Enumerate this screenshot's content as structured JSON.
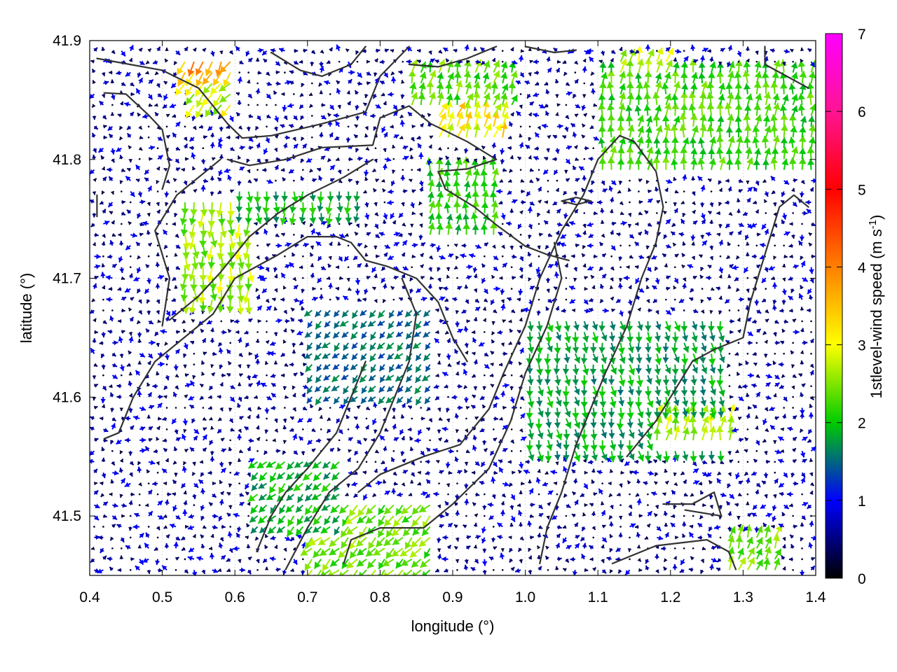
{
  "chart_data": {
    "type": "vector-field",
    "xlabel": "longitude (°)",
    "ylabel": "latitude (°)",
    "xlim": [
      0.4,
      1.4
    ],
    "ylim": [
      41.45,
      41.9
    ],
    "xticks": [
      "0.4",
      "0.5",
      "0.6",
      "0.7",
      "0.8",
      "0.9",
      "1.0",
      "1.1",
      "1.2",
      "1.3",
      "1.4"
    ],
    "xtick_values": [
      0.4,
      0.5,
      0.6,
      0.7,
      0.8,
      0.9,
      1.0,
      1.1,
      1.2,
      1.3,
      1.4
    ],
    "yticks": [
      "41.5",
      "41.6",
      "41.7",
      "41.8",
      "41.9"
    ],
    "ytick_values": [
      41.5,
      41.6,
      41.7,
      41.8,
      41.9
    ],
    "grid": true,
    "colorbar": {
      "label": "1stlevel-wind speed (m s-1)",
      "label_main": "1stlevel-wind speed (m s",
      "label_sup": "-1",
      "label_close": ")",
      "range": [
        0,
        7
      ],
      "ticks": [
        "0",
        "1",
        "2",
        "3",
        "4",
        "5",
        "6",
        "7"
      ],
      "tick_values": [
        0,
        1,
        2,
        3,
        4,
        5,
        6,
        7
      ],
      "colormap": [
        "#000000",
        "#0000ff",
        "#00cc00",
        "#ffff00",
        "#ff8000",
        "#ff0000",
        "#ff00ff"
      ]
    },
    "vector_grid": {
      "dx": 0.0125,
      "dy": 0.0091
    },
    "wind_regions": [
      {
        "lon": [
          0.52,
          0.6
        ],
        "lat": [
          41.86,
          41.89
        ],
        "speed": 3.6,
        "dir_deg": 210
      },
      {
        "lon": [
          0.54,
          0.6
        ],
        "lat": [
          41.84,
          41.87
        ],
        "speed": 2.8,
        "dir_deg": 220
      },
      {
        "lon": [
          0.88,
          0.98
        ],
        "lat": [
          41.81,
          41.87
        ],
        "speed": 3.1,
        "dir_deg": 20
      },
      {
        "lon": [
          0.84,
          0.99
        ],
        "lat": [
          41.84,
          41.88
        ],
        "speed": 2.3,
        "dir_deg": 15
      },
      {
        "lon": [
          1.1,
          1.4
        ],
        "lat": [
          41.79,
          41.88
        ],
        "speed": 2.2,
        "dir_deg": 5
      },
      {
        "lon": [
          1.12,
          1.2
        ],
        "lat": [
          41.87,
          41.89
        ],
        "speed": 2.6,
        "dir_deg": 15
      },
      {
        "lon": [
          0.53,
          0.62
        ],
        "lat": [
          41.68,
          41.77
        ],
        "speed": 2.6,
        "dir_deg": 180
      },
      {
        "lon": [
          0.6,
          0.78
        ],
        "lat": [
          41.75,
          41.78
        ],
        "speed": 1.9,
        "dir_deg": 180
      },
      {
        "lon": [
          0.86,
          0.96
        ],
        "lat": [
          41.73,
          41.8
        ],
        "speed": 2.1,
        "dir_deg": 5
      },
      {
        "lon": [
          1.0,
          1.27
        ],
        "lat": [
          41.55,
          41.67
        ],
        "speed": 1.8,
        "dir_deg": 170
      },
      {
        "lon": [
          1.18,
          1.29
        ],
        "lat": [
          41.56,
          41.59
        ],
        "speed": 2.6,
        "dir_deg": 10
      },
      {
        "lon": [
          0.7,
          0.88
        ],
        "lat": [
          41.45,
          41.51
        ],
        "speed": 2.4,
        "dir_deg": 225
      },
      {
        "lon": [
          0.62,
          0.75
        ],
        "lat": [
          41.49,
          41.55
        ],
        "speed": 1.9,
        "dir_deg": 225
      },
      {
        "lon": [
          1.28,
          1.35
        ],
        "lat": [
          41.45,
          41.49
        ],
        "speed": 2.4,
        "dir_deg": 20
      },
      {
        "lon": [
          0.7,
          0.88
        ],
        "lat": [
          41.6,
          41.68
        ],
        "speed": 1.5,
        "dir_deg": 225
      }
    ],
    "background_speed": 0.8,
    "contours": [
      [
        [
          0.41,
          41.885
        ],
        [
          0.5,
          41.875
        ],
        [
          0.55,
          41.86
        ],
        [
          0.59,
          41.83
        ],
        [
          0.61,
          41.818
        ],
        [
          0.65,
          41.82
        ],
        [
          0.72,
          41.83
        ],
        [
          0.78,
          41.84
        ],
        [
          0.8,
          41.87
        ],
        [
          0.84,
          41.895
        ]
      ],
      [
        [
          0.42,
          41.856
        ],
        [
          0.45,
          41.855
        ],
        [
          0.48,
          41.838
        ],
        [
          0.5,
          41.825
        ],
        [
          0.51,
          41.795
        ],
        [
          0.5,
          41.775
        ]
      ],
      [
        [
          0.41,
          41.77
        ],
        [
          0.41,
          41.752
        ]
      ],
      [
        [
          0.59,
          41.8
        ],
        [
          0.62,
          41.795
        ],
        [
          0.67,
          41.8
        ],
        [
          0.72,
          41.81
        ],
        [
          0.79,
          41.812
        ],
        [
          0.8,
          41.835
        ],
        [
          0.84,
          41.845
        ],
        [
          0.87,
          41.83
        ],
        [
          0.92,
          41.815
        ],
        [
          0.96,
          41.8
        ],
        [
          0.92,
          41.792
        ],
        [
          0.88,
          41.79
        ],
        [
          0.89,
          41.775
        ],
        [
          0.93,
          41.76
        ],
        [
          0.96,
          41.745
        ],
        [
          1.0,
          41.727
        ],
        [
          1.03,
          41.72
        ],
        [
          1.06,
          41.715
        ]
      ],
      [
        [
          0.5,
          41.66
        ],
        [
          0.51,
          41.7
        ],
        [
          0.49,
          41.74
        ],
        [
          0.52,
          41.77
        ],
        [
          0.56,
          41.79
        ],
        [
          0.58,
          41.8
        ]
      ],
      [
        [
          0.51,
          41.665
        ],
        [
          0.55,
          41.685
        ],
        [
          0.58,
          41.705
        ],
        [
          0.62,
          41.735
        ],
        [
          0.66,
          41.755
        ],
        [
          0.7,
          41.77
        ],
        [
          0.75,
          41.785
        ],
        [
          0.79,
          41.8
        ]
      ],
      [
        [
          0.42,
          41.565
        ],
        [
          0.44,
          41.57
        ],
        [
          0.46,
          41.6
        ],
        [
          0.49,
          41.63
        ],
        [
          0.53,
          41.65
        ],
        [
          0.57,
          41.67
        ],
        [
          0.6,
          41.7
        ],
        [
          0.63,
          41.71
        ],
        [
          0.66,
          41.72
        ],
        [
          0.7,
          41.735
        ],
        [
          0.74,
          41.735
        ],
        [
          0.76,
          41.73
        ]
      ],
      [
        [
          0.76,
          41.73
        ],
        [
          0.78,
          41.715
        ],
        [
          0.81,
          41.71
        ],
        [
          0.85,
          41.7
        ],
        [
          0.88,
          41.68
        ],
        [
          0.9,
          41.65
        ],
        [
          0.92,
          41.63
        ]
      ],
      [
        [
          0.63,
          41.47
        ],
        [
          0.65,
          41.5
        ],
        [
          0.67,
          41.52
        ],
        [
          0.7,
          41.54
        ],
        [
          0.72,
          41.555
        ],
        [
          0.74,
          41.57
        ],
        [
          0.76,
          41.6
        ],
        [
          0.78,
          41.63
        ]
      ],
      [
        [
          0.67,
          41.455
        ],
        [
          0.7,
          41.49
        ],
        [
          0.73,
          41.52
        ],
        [
          0.77,
          41.54
        ],
        [
          0.8,
          41.57
        ],
        [
          0.82,
          41.6
        ],
        [
          0.84,
          41.63
        ],
        [
          0.85,
          41.67
        ],
        [
          0.83,
          41.7
        ]
      ],
      [
        [
          0.75,
          41.46
        ],
        [
          0.76,
          41.48
        ],
        [
          0.8,
          41.49
        ],
        [
          0.86,
          41.49
        ],
        [
          0.9,
          41.51
        ],
        [
          0.95,
          41.54
        ],
        [
          0.98,
          41.58
        ],
        [
          1.0,
          41.62
        ],
        [
          1.03,
          41.66
        ],
        [
          1.05,
          41.7
        ],
        [
          1.04,
          41.73
        ]
      ],
      [
        [
          0.77,
          41.52
        ],
        [
          0.8,
          41.535
        ],
        [
          0.86,
          41.55
        ],
        [
          0.91,
          41.56
        ],
        [
          0.95,
          41.59
        ],
        [
          0.97,
          41.62
        ],
        [
          1.0,
          41.66
        ],
        [
          1.02,
          41.7
        ],
        [
          1.05,
          41.74
        ],
        [
          1.08,
          41.77
        ],
        [
          1.1,
          41.8
        ],
        [
          1.13,
          41.82
        ],
        [
          1.15,
          41.815
        ],
        [
          1.18,
          41.79
        ],
        [
          1.19,
          41.76
        ],
        [
          1.18,
          41.73
        ],
        [
          1.16,
          41.7
        ],
        [
          1.14,
          41.66
        ],
        [
          1.11,
          41.62
        ],
        [
          1.09,
          41.59
        ],
        [
          1.07,
          41.56
        ],
        [
          1.05,
          41.52
        ],
        [
          1.03,
          41.49
        ],
        [
          1.02,
          41.46
        ]
      ],
      [
        [
          1.12,
          41.46
        ],
        [
          1.18,
          41.475
        ],
        [
          1.25,
          41.48
        ],
        [
          1.28,
          41.47
        ],
        [
          1.29,
          41.455
        ]
      ],
      [
        [
          1.14,
          41.55
        ],
        [
          1.18,
          41.58
        ],
        [
          1.21,
          41.61
        ],
        [
          1.23,
          41.63
        ],
        [
          1.26,
          41.64
        ],
        [
          1.3,
          41.65
        ],
        [
          1.31,
          41.68
        ],
        [
          1.33,
          41.72
        ],
        [
          1.35,
          41.76
        ],
        [
          1.37,
          41.77
        ],
        [
          1.39,
          41.76
        ]
      ],
      [
        [
          1.19,
          41.51
        ],
        [
          1.23,
          41.51
        ],
        [
          1.26,
          41.52
        ],
        [
          1.27,
          41.5
        ],
        [
          1.22,
          41.505
        ]
      ],
      [
        [
          1.05,
          41.765
        ],
        [
          1.07,
          41.762
        ],
        [
          1.09,
          41.765
        ],
        [
          1.07,
          41.768
        ],
        [
          1.05,
          41.765
        ]
      ],
      [
        [
          1.33,
          41.895
        ],
        [
          1.33,
          41.88
        ],
        [
          1.36,
          41.87
        ],
        [
          1.39,
          41.86
        ]
      ],
      [
        [
          0.65,
          41.89
        ],
        [
          0.69,
          41.875
        ],
        [
          0.72,
          41.87
        ],
        [
          0.76,
          41.88
        ],
        [
          0.78,
          41.895
        ]
      ],
      [
        [
          0.84,
          41.88
        ],
        [
          0.88,
          41.878
        ],
        [
          0.92,
          41.885
        ],
        [
          0.96,
          41.895
        ]
      ],
      [
        [
          1.0,
          41.895
        ],
        [
          1.04,
          41.89
        ],
        [
          1.07,
          41.892
        ]
      ]
    ]
  }
}
